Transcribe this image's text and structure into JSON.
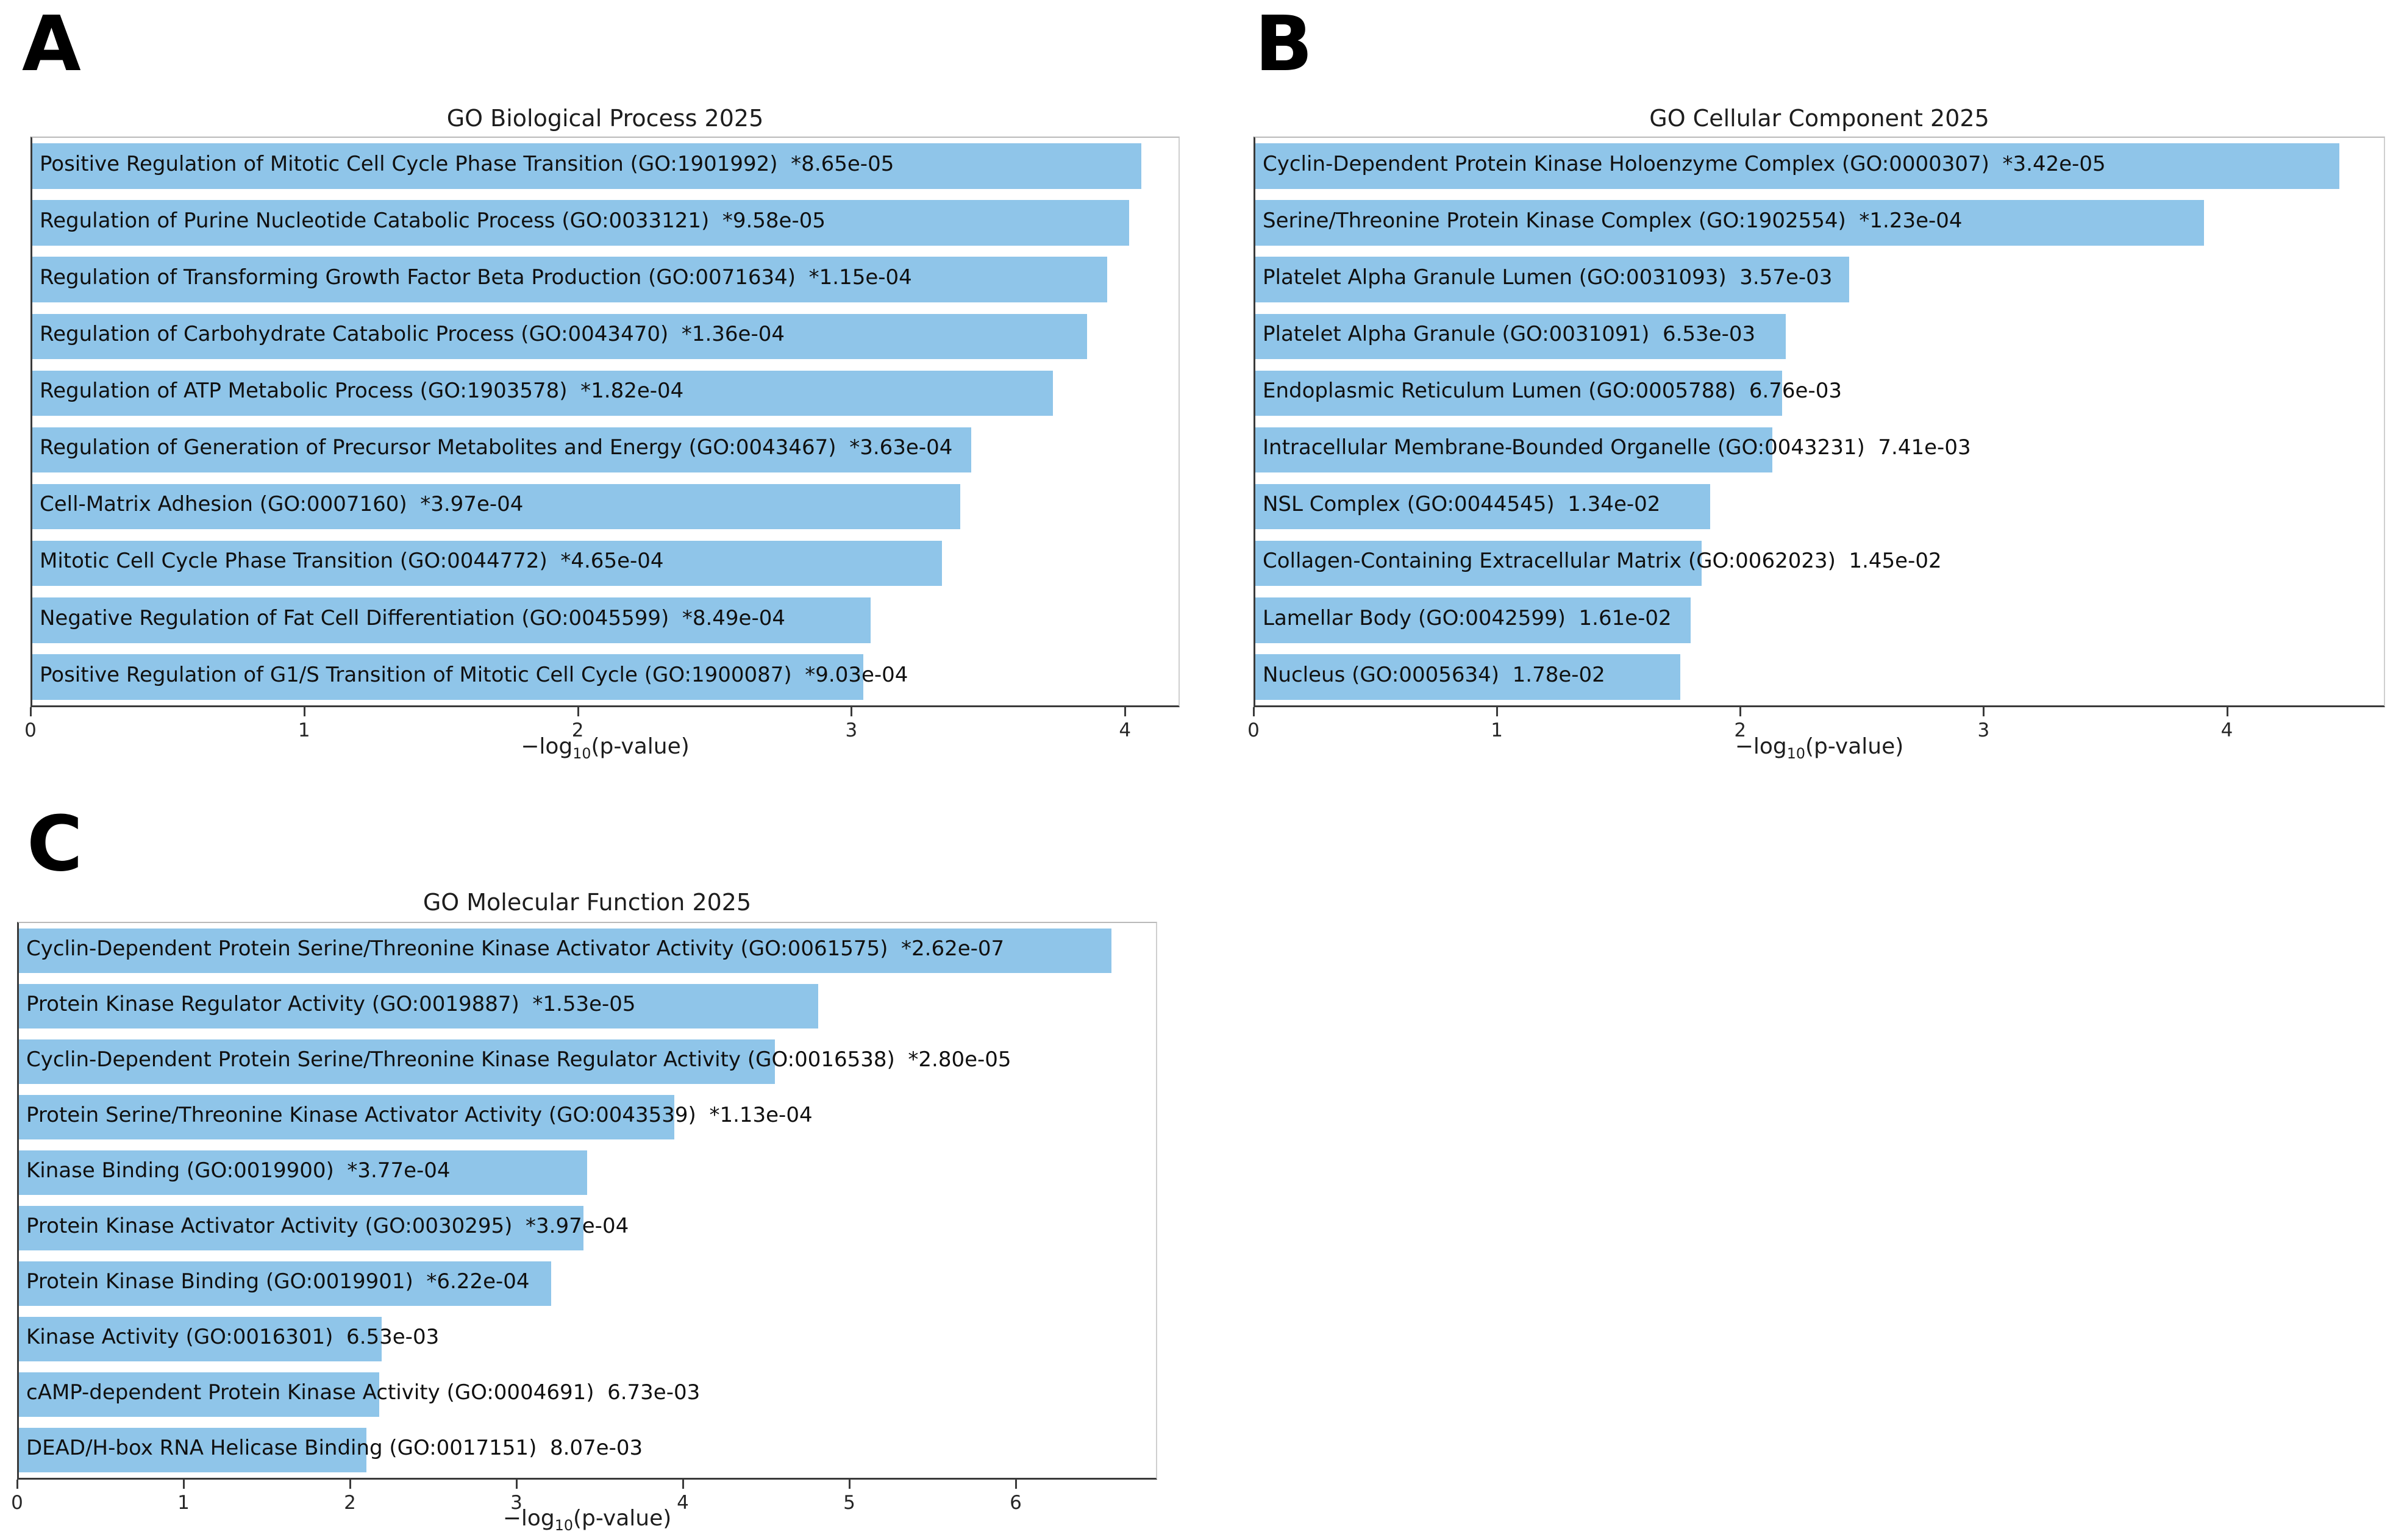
{
  "figure_title": "GO enrichment bar charts",
  "chart_data": [
    {
      "type": "bar",
      "orientation": "horizontal",
      "panel": "A",
      "title": "GO Biological Process 2025",
      "xlabel": "−log10(p-value)",
      "xlabel_parts": {
        "pre": "−log",
        "sub": "10",
        "post": "(p-value)"
      },
      "xlim": [
        0,
        4.2
      ],
      "xticks": [
        0,
        1,
        2,
        3,
        4
      ],
      "bar_color": "#8FC5E9",
      "grid": false,
      "bars": [
        {
          "term": "Positive Regulation of Mitotic Cell Cycle Phase Transition",
          "go_id": "GO:1901992",
          "p_value": "8.65e-05",
          "significant": true,
          "value": 4.063
        },
        {
          "term": "Regulation of Purine Nucleotide Catabolic Process",
          "go_id": "GO:0033121",
          "p_value": "9.58e-05",
          "significant": true,
          "value": 4.019
        },
        {
          "term": "Regulation of Transforming Growth Factor Beta Production",
          "go_id": "GO:0071634",
          "p_value": "1.15e-04",
          "significant": true,
          "value": 3.939
        },
        {
          "term": "Regulation of Carbohydrate Catabolic Process",
          "go_id": "GO:0043470",
          "p_value": "1.36e-04",
          "significant": true,
          "value": 3.866
        },
        {
          "term": "Regulation of ATP Metabolic Process",
          "go_id": "GO:1903578",
          "p_value": "1.82e-04",
          "significant": true,
          "value": 3.74
        },
        {
          "term": "Regulation of Generation of Precursor Metabolites and Energy",
          "go_id": "GO:0043467",
          "p_value": "3.63e-04",
          "significant": true,
          "value": 3.44
        },
        {
          "term": "Cell-Matrix Adhesion",
          "go_id": "GO:0007160",
          "p_value": "3.97e-04",
          "significant": true,
          "value": 3.401
        },
        {
          "term": "Mitotic Cell Cycle Phase Transition",
          "go_id": "GO:0044772",
          "p_value": "4.65e-04",
          "significant": true,
          "value": 3.333
        },
        {
          "term": "Negative Regulation of Fat Cell Differentiation",
          "go_id": "GO:0045599",
          "p_value": "8.49e-04",
          "significant": true,
          "value": 3.071
        },
        {
          "term": "Positive Regulation of G1/S Transition of Mitotic Cell Cycle",
          "go_id": "GO:1900087",
          "p_value": "9.03e-04",
          "significant": true,
          "value": 3.044
        }
      ]
    },
    {
      "type": "bar",
      "orientation": "horizontal",
      "panel": "B",
      "title": "GO Cellular Component 2025",
      "xlabel": "−log10(p-value)",
      "xlabel_parts": {
        "pre": "−log",
        "sub": "10",
        "post": "(p-value)"
      },
      "xlim": [
        0,
        4.65
      ],
      "xticks": [
        0,
        1,
        2,
        3,
        4
      ],
      "bar_color": "#8FC5E9",
      "grid": false,
      "bars": [
        {
          "term": "Cyclin-Dependent Protein Kinase Holoenzyme Complex",
          "go_id": "GO:0000307",
          "p_value": "3.42e-05",
          "significant": true,
          "value": 4.466
        },
        {
          "term": "Serine/Threonine Protein Kinase Complex",
          "go_id": "GO:1902554",
          "p_value": "1.23e-04",
          "significant": true,
          "value": 3.91
        },
        {
          "term": "Platelet Alpha Granule Lumen",
          "go_id": "GO:0031093",
          "p_value": "3.57e-03",
          "significant": false,
          "value": 2.447
        },
        {
          "term": "Platelet Alpha Granule",
          "go_id": "GO:0031091",
          "p_value": "6.53e-03",
          "significant": false,
          "value": 2.185
        },
        {
          "term": "Endoplasmic Reticulum Lumen",
          "go_id": "GO:0005788",
          "p_value": "6.76e-03",
          "significant": false,
          "value": 2.17
        },
        {
          "term": "Intracellular Membrane-Bounded Organelle",
          "go_id": "GO:0043231",
          "p_value": "7.41e-03",
          "significant": false,
          "value": 2.13
        },
        {
          "term": "NSL Complex",
          "go_id": "GO:0044545",
          "p_value": "1.34e-02",
          "significant": false,
          "value": 1.873
        },
        {
          "term": "Collagen-Containing Extracellular Matrix",
          "go_id": "GO:0062023",
          "p_value": "1.45e-02",
          "significant": false,
          "value": 1.839
        },
        {
          "term": "Lamellar Body",
          "go_id": "GO:0042599",
          "p_value": "1.61e-02",
          "significant": false,
          "value": 1.793
        },
        {
          "term": "Nucleus",
          "go_id": "GO:0005634",
          "p_value": "1.78e-02",
          "significant": false,
          "value": 1.75
        }
      ]
    },
    {
      "type": "bar",
      "orientation": "horizontal",
      "panel": "C",
      "title": "GO Molecular Function 2025",
      "xlabel": "−log10(p-value)",
      "xlabel_parts": {
        "pre": "−log",
        "sub": "10",
        "post": "(p-value)"
      },
      "xlim": [
        0,
        6.85
      ],
      "xticks": [
        0,
        1,
        2,
        3,
        4,
        5,
        6
      ],
      "bar_color": "#8FC5E9",
      "grid": false,
      "bars": [
        {
          "term": "Cyclin-Dependent Protein Serine/Threonine Kinase Activator Activity",
          "go_id": "GO:0061575",
          "p_value": "2.62e-07",
          "significant": true,
          "value": 6.582
        },
        {
          "term": "Protein Kinase Regulator Activity",
          "go_id": "GO:0019887",
          "p_value": "1.53e-05",
          "significant": true,
          "value": 4.815
        },
        {
          "term": "Cyclin-Dependent Protein Serine/Threonine Kinase Regulator Activity",
          "go_id": "GO:0016538",
          "p_value": "2.80e-05",
          "significant": true,
          "value": 4.553
        },
        {
          "term": "Protein Serine/Threonine Kinase Activator Activity",
          "go_id": "GO:0043539",
          "p_value": "1.13e-04",
          "significant": true,
          "value": 3.947
        },
        {
          "term": "Kinase Binding",
          "go_id": "GO:0019900",
          "p_value": "3.77e-04",
          "significant": true,
          "value": 3.424
        },
        {
          "term": "Protein Kinase Activator Activity",
          "go_id": "GO:0030295",
          "p_value": "3.97e-04",
          "significant": true,
          "value": 3.401
        },
        {
          "term": "Protein Kinase Binding",
          "go_id": "GO:0019901",
          "p_value": "6.22e-04",
          "significant": true,
          "value": 3.206
        },
        {
          "term": "Kinase Activity",
          "go_id": "GO:0016301",
          "p_value": "6.53e-03",
          "significant": false,
          "value": 2.185
        },
        {
          "term": "cAMP-dependent Protein Kinase Activity",
          "go_id": "GO:0004691",
          "p_value": "6.73e-03",
          "significant": false,
          "value": 2.172
        },
        {
          "term": "DEAD/H-box RNA Helicase Binding",
          "go_id": "GO:0017151",
          "p_value": "8.07e-03",
          "significant": false,
          "value": 2.093
        }
      ]
    }
  ]
}
